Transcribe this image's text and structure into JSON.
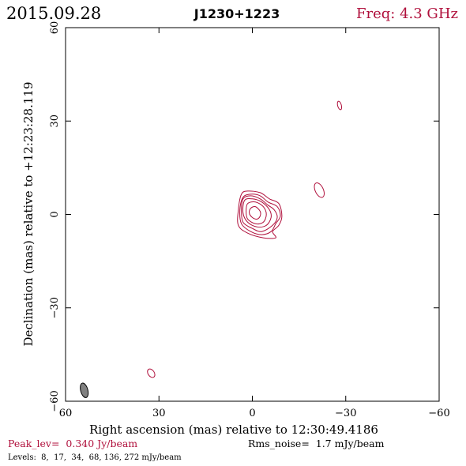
{
  "header": {
    "date": "2015.09.28",
    "source": "J1230+1223",
    "freq": "Freq: 4.3 GHz"
  },
  "footer": {
    "peak": "Peak_lev=  0.340 Jy/beam",
    "rms": "Rms_noise=  1.7 mJy/beam",
    "levels": "Levels:  8,  17,  34,  68, 136, 272 mJy/beam"
  },
  "colors": {
    "contour": "#b0103c",
    "text_accent": "#b0103c",
    "beam": "#808080"
  },
  "chart_data": {
    "type": "contour",
    "xlabel": "Right ascension (mas) relative to 12:30:49.4186",
    "ylabel": "Declination (mas) relative to +12:23:28.119",
    "xlim": [
      60,
      -60
    ],
    "ylim": [
      -60,
      60
    ],
    "xticks": [
      60,
      30,
      0,
      -30,
      -60
    ],
    "yticks": [
      -60,
      -30,
      0,
      30,
      60
    ],
    "xtick_labels": [
      "60",
      "30",
      "0",
      "−30",
      "−60"
    ],
    "ytick_labels": [
      "−60",
      "−30",
      "0",
      "30",
      "60"
    ],
    "levels_mJy": [
      8,
      17,
      34,
      68,
      136,
      272
    ],
    "contours": [
      {
        "level": 8,
        "points": [
          [
            3.5,
            6.5
          ],
          [
            1.5,
            7.5
          ],
          [
            -2.5,
            7
          ],
          [
            -5.5,
            5
          ],
          [
            -8.5,
            3.5
          ],
          [
            -9.5,
            -0.5
          ],
          [
            -8.5,
            -3.5
          ],
          [
            -6.5,
            -5.5
          ],
          [
            -7.5,
            -7.5
          ],
          [
            -3.5,
            -7.5
          ],
          [
            1.5,
            -6
          ],
          [
            4.5,
            -3.5
          ],
          [
            4.5,
            1.5
          ]
        ]
      },
      {
        "level": 17,
        "points": [
          [
            3,
            5.5
          ],
          [
            0.5,
            6.5
          ],
          [
            -2.5,
            6
          ],
          [
            -5,
            4
          ],
          [
            -8,
            2.5
          ],
          [
            -9,
            -0.5
          ],
          [
            -7.5,
            -3
          ],
          [
            -6,
            -5.5
          ],
          [
            -3,
            -6.5
          ],
          [
            0.5,
            -5.5
          ],
          [
            3.5,
            -3
          ],
          [
            4,
            1.5
          ]
        ]
      },
      {
        "level": 34,
        "points": [
          [
            3,
            5
          ],
          [
            0.5,
            6
          ],
          [
            -2.5,
            5
          ],
          [
            -5,
            3
          ],
          [
            -7,
            1.5
          ],
          [
            -8,
            -1
          ],
          [
            -6.5,
            -3.5
          ],
          [
            -3,
            -5.5
          ],
          [
            0,
            -4.5
          ],
          [
            3,
            -2.5
          ],
          [
            3.5,
            1.5
          ]
        ]
      },
      {
        "level": 68,
        "points": [
          [
            2.5,
            4.5
          ],
          [
            0,
            5
          ],
          [
            -3,
            4
          ],
          [
            -5.5,
            1.5
          ],
          [
            -6,
            -1
          ],
          [
            -4.5,
            -3.5
          ],
          [
            -1.5,
            -4
          ],
          [
            1.5,
            -2.5
          ],
          [
            3,
            0.5
          ]
        ]
      },
      {
        "level": 136,
        "points": [
          [
            1.5,
            3.5
          ],
          [
            -1,
            4
          ],
          [
            -3.5,
            2.5
          ],
          [
            -4.5,
            0
          ],
          [
            -3.5,
            -2.5
          ],
          [
            -1,
            -3
          ],
          [
            1.5,
            -1.5
          ],
          [
            2,
            1
          ]
        ]
      },
      {
        "level": 272,
        "points": [
          [
            0.5,
            2
          ],
          [
            -1,
            2.5
          ],
          [
            -2.5,
            1
          ],
          [
            -2.5,
            -0.5
          ],
          [
            -1.5,
            -1.5
          ],
          [
            0,
            -1
          ],
          [
            1,
            0.5
          ]
        ]
      }
    ],
    "components": [
      {
        "x": -21.5,
        "y": 7.8,
        "rx": 1.3,
        "ry": 2.5,
        "angle": -25
      },
      {
        "x": -28,
        "y": 35,
        "rx": 0.6,
        "ry": 1.4,
        "angle": -15
      },
      {
        "x": 32.5,
        "y": -51,
        "rx": 1.0,
        "ry": 1.5,
        "angle": -35
      }
    ],
    "beam": {
      "x": 54,
      "y": -56.5,
      "major": 4.8,
      "minor": 2.3,
      "pa_deg": -15
    }
  }
}
